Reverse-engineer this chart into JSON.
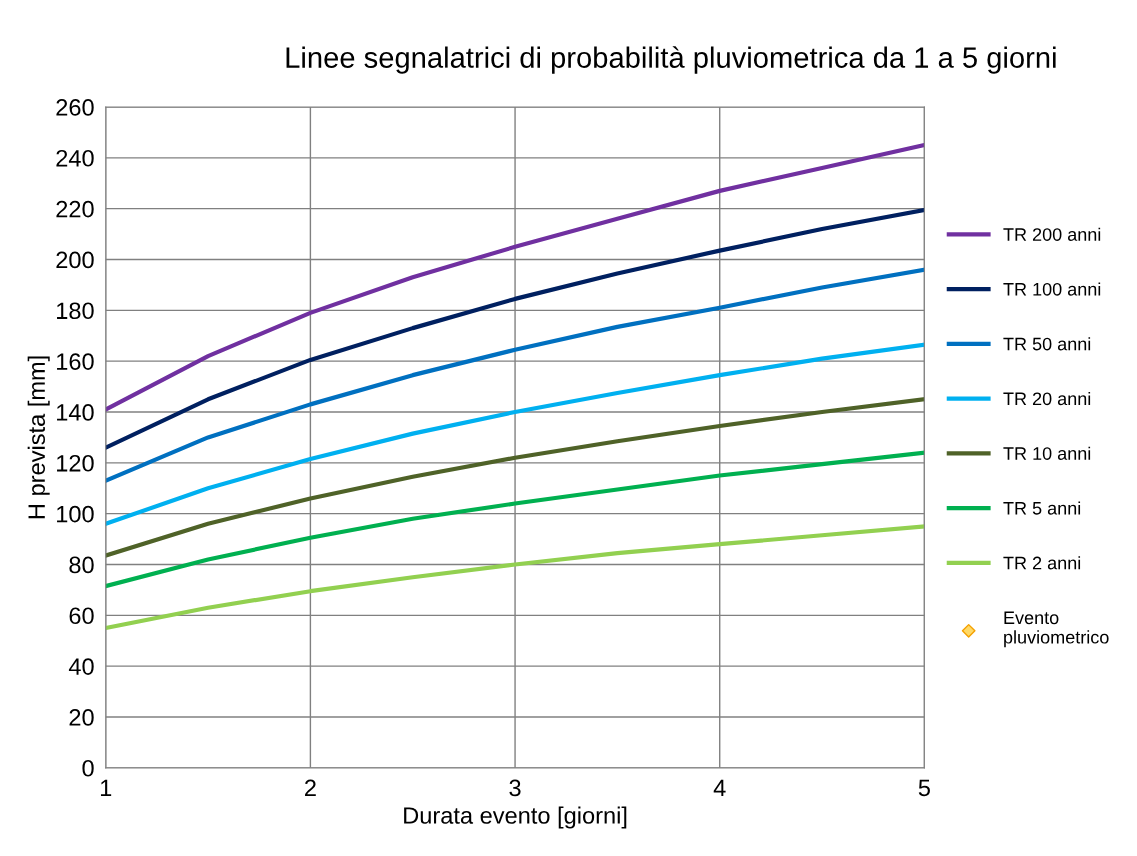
{
  "chart_data": {
    "type": "line",
    "title": "Linee segnalatrici di probabilità pluviometrica da 1 a 5 giorni",
    "xlabel": "Durata evento [giorni]",
    "ylabel": "H prevista [mm]",
    "x": [
      1,
      1.5,
      2,
      2.5,
      3,
      3.5,
      4,
      4.5,
      5
    ],
    "xlim": [
      1,
      5
    ],
    "xticks": [
      1,
      2,
      3,
      4,
      5
    ],
    "ylim": [
      0,
      260
    ],
    "yticks": [
      0,
      20,
      40,
      60,
      80,
      100,
      120,
      140,
      160,
      180,
      200,
      220,
      240,
      260
    ],
    "grid": true,
    "legend": "right",
    "marker": "none",
    "line_style": "solid",
    "series": [
      {
        "name": "TR 200 anni",
        "color": "#7030a0",
        "values": [
          141,
          162,
          179,
          193,
          205,
          216,
          227,
          236,
          245
        ]
      },
      {
        "name": "TR 100 anni",
        "color": "#002060",
        "values": [
          126,
          145,
          160.5,
          173,
          184.5,
          194.5,
          203.5,
          212,
          219.5
        ]
      },
      {
        "name": "TR 50 anni",
        "color": "#0070c0",
        "values": [
          113,
          130,
          143,
          154.5,
          164.5,
          173.5,
          181,
          189,
          196
        ]
      },
      {
        "name": "TR 20 anni",
        "color": "#00b0f0",
        "values": [
          96,
          110,
          121.5,
          131.5,
          140,
          147.5,
          154.5,
          161,
          166.5
        ]
      },
      {
        "name": "TR 10 anni",
        "color": "#4f6228",
        "values": [
          83.5,
          96,
          106,
          114.5,
          122,
          128.5,
          134.5,
          140,
          145
        ]
      },
      {
        "name": "TR 5 anni",
        "color": "#00b050",
        "values": [
          71.5,
          82,
          90.5,
          98,
          104,
          109.5,
          115,
          119.5,
          124
        ]
      },
      {
        "name": "TR 2 anni",
        "color": "#92d050",
        "values": [
          55,
          63,
          69.5,
          75,
          80,
          84.5,
          88,
          91.5,
          95
        ]
      },
      {
        "name": "Evento\npluviometrico",
        "type": "scatter",
        "marker": "diamond",
        "color": "#ffd966",
        "values": [
          null,
          null,
          null,
          null,
          null,
          null,
          null,
          null,
          null
        ]
      }
    ]
  }
}
